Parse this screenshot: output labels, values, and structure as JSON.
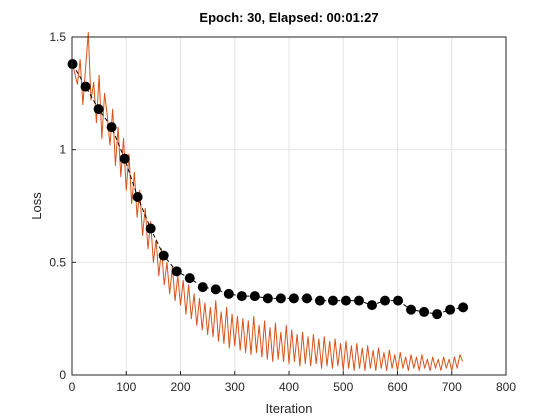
{
  "chart_data": {
    "type": "line",
    "title": "Epoch: 30, Elapsed: 00:01:27",
    "xlabel": "Iteration",
    "ylabel": "Loss",
    "xlim": [
      0,
      800
    ],
    "ylim": [
      0,
      1.5
    ],
    "xticks": [
      0,
      100,
      200,
      300,
      400,
      500,
      600,
      700,
      800
    ],
    "yticks": [
      0,
      0.5,
      1,
      1.5
    ],
    "ytick_labels": [
      "0",
      "0.5",
      "1",
      "1.5"
    ],
    "grid": true,
    "series": [
      {
        "role": "training-loss",
        "color": "#d95319",
        "points": [
          [
            1,
            1.38
          ],
          [
            5,
            1.34
          ],
          [
            10,
            1.29
          ],
          [
            15,
            1.4
          ],
          [
            20,
            1.2
          ],
          [
            25,
            1.36
          ],
          [
            30,
            1.52
          ],
          [
            35,
            1.22
          ],
          [
            40,
            1.3
          ],
          [
            45,
            1.12
          ],
          [
            50,
            1.33
          ],
          [
            55,
            1.05
          ],
          [
            60,
            1.25
          ],
          [
            65,
            1.15
          ],
          [
            70,
            1.02
          ],
          [
            75,
            1.18
          ],
          [
            80,
            0.93
          ],
          [
            85,
            1.1
          ],
          [
            90,
            0.88
          ],
          [
            95,
            1.05
          ],
          [
            100,
            0.82
          ],
          [
            105,
            0.98
          ],
          [
            110,
            0.76
          ],
          [
            115,
            0.9
          ],
          [
            120,
            0.7
          ],
          [
            125,
            0.82
          ],
          [
            130,
            0.62
          ],
          [
            135,
            0.74
          ],
          [
            140,
            0.56
          ],
          [
            145,
            0.68
          ],
          [
            150,
            0.5
          ],
          [
            155,
            0.6
          ],
          [
            160,
            0.44
          ],
          [
            165,
            0.56
          ],
          [
            170,
            0.4
          ],
          [
            175,
            0.5
          ],
          [
            180,
            0.36
          ],
          [
            185,
            0.48
          ],
          [
            190,
            0.33
          ],
          [
            195,
            0.44
          ],
          [
            200,
            0.31
          ],
          [
            205,
            0.42
          ],
          [
            210,
            0.27
          ],
          [
            215,
            0.4
          ],
          [
            220,
            0.25
          ],
          [
            225,
            0.36
          ],
          [
            230,
            0.22
          ],
          [
            235,
            0.34
          ],
          [
            240,
            0.2
          ],
          [
            245,
            0.32
          ],
          [
            250,
            0.18
          ],
          [
            255,
            0.3
          ],
          [
            260,
            0.17
          ],
          [
            265,
            0.33
          ],
          [
            270,
            0.15
          ],
          [
            275,
            0.28
          ],
          [
            280,
            0.14
          ],
          [
            285,
            0.3
          ],
          [
            290,
            0.12
          ],
          [
            295,
            0.27
          ],
          [
            300,
            0.13
          ],
          [
            305,
            0.26
          ],
          [
            310,
            0.11
          ],
          [
            315,
            0.25
          ],
          [
            320,
            0.1
          ],
          [
            325,
            0.24
          ],
          [
            330,
            0.09
          ],
          [
            335,
            0.26
          ],
          [
            340,
            0.1
          ],
          [
            345,
            0.22
          ],
          [
            350,
            0.08
          ],
          [
            355,
            0.24
          ],
          [
            360,
            0.07
          ],
          [
            365,
            0.21
          ],
          [
            370,
            0.06
          ],
          [
            375,
            0.23
          ],
          [
            380,
            0.07
          ],
          [
            385,
            0.19
          ],
          [
            390,
            0.06
          ],
          [
            395,
            0.22
          ],
          [
            400,
            0.05
          ],
          [
            405,
            0.2
          ],
          [
            410,
            0.06
          ],
          [
            415,
            0.18
          ],
          [
            420,
            0.04
          ],
          [
            425,
            0.19
          ],
          [
            430,
            0.05
          ],
          [
            435,
            0.17
          ],
          [
            440,
            0.04
          ],
          [
            445,
            0.18
          ],
          [
            450,
            0.05
          ],
          [
            455,
            0.16
          ],
          [
            460,
            0.03
          ],
          [
            465,
            0.17
          ],
          [
            470,
            0.04
          ],
          [
            475,
            0.15
          ],
          [
            480,
            0.03
          ],
          [
            485,
            0.16
          ],
          [
            490,
            0.04
          ],
          [
            495,
            0.14
          ],
          [
            500,
            0.02
          ],
          [
            505,
            0.15
          ],
          [
            510,
            0.03
          ],
          [
            515,
            0.13
          ],
          [
            520,
            0.02
          ],
          [
            525,
            0.14
          ],
          [
            530,
            0.03
          ],
          [
            535,
            0.12
          ],
          [
            540,
            0.02
          ],
          [
            545,
            0.13
          ],
          [
            550,
            0.03
          ],
          [
            555,
            0.11
          ],
          [
            560,
            0.02
          ],
          [
            565,
            0.12
          ],
          [
            570,
            0.03
          ],
          [
            575,
            0.1
          ],
          [
            580,
            0.02
          ],
          [
            585,
            0.11
          ],
          [
            590,
            0.03
          ],
          [
            595,
            0.09
          ],
          [
            600,
            0.02
          ],
          [
            605,
            0.1
          ],
          [
            610,
            0.03
          ],
          [
            615,
            0.08
          ],
          [
            620,
            0.02
          ],
          [
            625,
            0.09
          ],
          [
            630,
            0.03
          ],
          [
            635,
            0.08
          ],
          [
            640,
            0.02
          ],
          [
            645,
            0.09
          ],
          [
            650,
            0.03
          ],
          [
            655,
            0.07
          ],
          [
            660,
            0.02
          ],
          [
            665,
            0.08
          ],
          [
            670,
            0.03
          ],
          [
            675,
            0.07
          ],
          [
            680,
            0.02
          ],
          [
            685,
            0.08
          ],
          [
            690,
            0.03
          ],
          [
            695,
            0.07
          ],
          [
            700,
            0.02
          ],
          [
            705,
            0.08
          ],
          [
            710,
            0.03
          ],
          [
            715,
            0.09
          ],
          [
            720,
            0.06
          ]
        ]
      },
      {
        "role": "validation-loss",
        "color": "#000000",
        "x": [
          1,
          25,
          49,
          73,
          97,
          121,
          145,
          169,
          193,
          217,
          241,
          265,
          289,
          313,
          337,
          361,
          385,
          409,
          433,
          457,
          481,
          505,
          529,
          553,
          577,
          601,
          625,
          649,
          673,
          697,
          721
        ],
        "y": [
          1.38,
          1.28,
          1.18,
          1.1,
          0.96,
          0.79,
          0.65,
          0.53,
          0.46,
          0.43,
          0.39,
          0.38,
          0.36,
          0.35,
          0.35,
          0.34,
          0.34,
          0.34,
          0.34,
          0.33,
          0.33,
          0.33,
          0.33,
          0.31,
          0.33,
          0.33,
          0.29,
          0.28,
          0.27,
          0.29,
          0.3
        ]
      }
    ]
  }
}
